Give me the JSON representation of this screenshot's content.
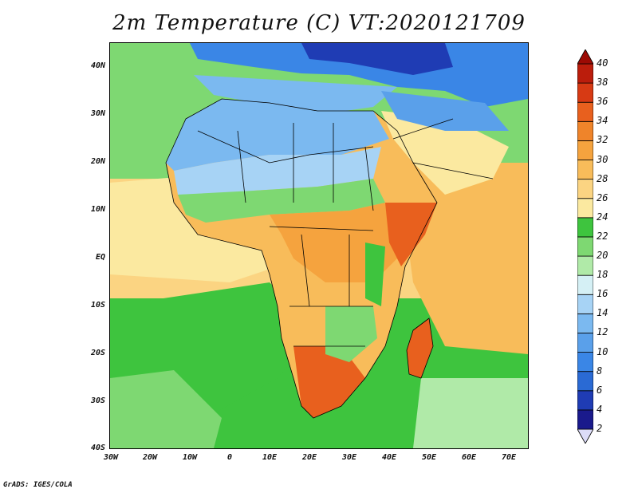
{
  "title": "2m Temperature (C) VT:2020121709",
  "footer": "GrADS: IGES/COLA",
  "map": {
    "variable": "2m Temperature",
    "units": "C",
    "valid_time": "2020121709",
    "lon_range": [
      -30,
      75
    ],
    "lat_range": [
      -40,
      45
    ],
    "lat_labels": [
      "40N",
      "30N",
      "20N",
      "10N",
      "EQ",
      "10S",
      "20S",
      "30S",
      "40S"
    ],
    "lon_labels": [
      "30W",
      "20W",
      "10W",
      "0",
      "10E",
      "20E",
      "30E",
      "40E",
      "50E",
      "60E",
      "70E"
    ]
  },
  "colorbar": {
    "levels": [
      2,
      4,
      6,
      8,
      10,
      12,
      14,
      16,
      18,
      20,
      22,
      24,
      26,
      28,
      30,
      32,
      34,
      36,
      38,
      40
    ],
    "colors": [
      "#dcdcf8",
      "#1a1a8c",
      "#1f3cb4",
      "#2a6ad4",
      "#3a86e6",
      "#5aa0ea",
      "#7bb9f0",
      "#a7d3f5",
      "#d5f0f5",
      "#b0eaa8",
      "#7ed872",
      "#3ec43e",
      "#fbe9a0",
      "#fbd482",
      "#f8bc5a",
      "#f5a33e",
      "#ef842a",
      "#e8601e",
      "#d73a14",
      "#bb1d0c",
      "#9c0a04"
    ]
  },
  "colors": {
    "ocean_tropical": "#fbd482",
    "ocean_mid": "#3ec43e",
    "ocean_cool": "#7ed872",
    "land_hot": "#f5a33e",
    "land_very_hot": "#e8601e",
    "land_warm": "#f8bc5a",
    "land_cool": "#7bb9f0",
    "land_cold": "#2a6ad4",
    "mediterranean": "#5aa0ea",
    "border": "#000000"
  }
}
